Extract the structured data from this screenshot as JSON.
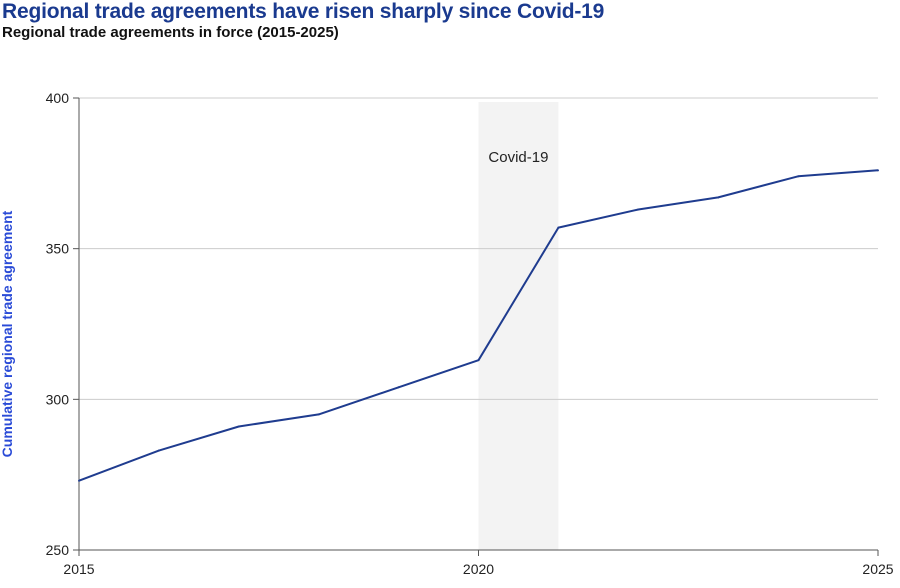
{
  "chart_data": {
    "type": "line",
    "title": "Regional trade agreements have risen sharply since Covid-19",
    "subtitle": "Regional trade agreements in force (2015-2025)",
    "xlabel": "",
    "ylabel": "Cumulative regional trade agreement",
    "xlim": [
      2015,
      2025
    ],
    "ylim": [
      250,
      400
    ],
    "x_ticks": [
      "2015",
      "2020",
      "2025"
    ],
    "y_ticks": [
      "250",
      "300",
      "350",
      "400"
    ],
    "grid": "horizontal",
    "series": [
      {
        "color": "#1f3c8f",
        "x": [
          2015,
          2016,
          2017,
          2018,
          2019,
          2020,
          2021,
          2022,
          2023,
          2024,
          2025
        ],
        "y": [
          273,
          283,
          291,
          295,
          304,
          313,
          357,
          363,
          367,
          374,
          376
        ]
      }
    ],
    "annotations": [
      {
        "label": "Covid-19",
        "x_start": 2020,
        "x_end": 2021,
        "color": "#f3f3f3"
      }
    ]
  }
}
